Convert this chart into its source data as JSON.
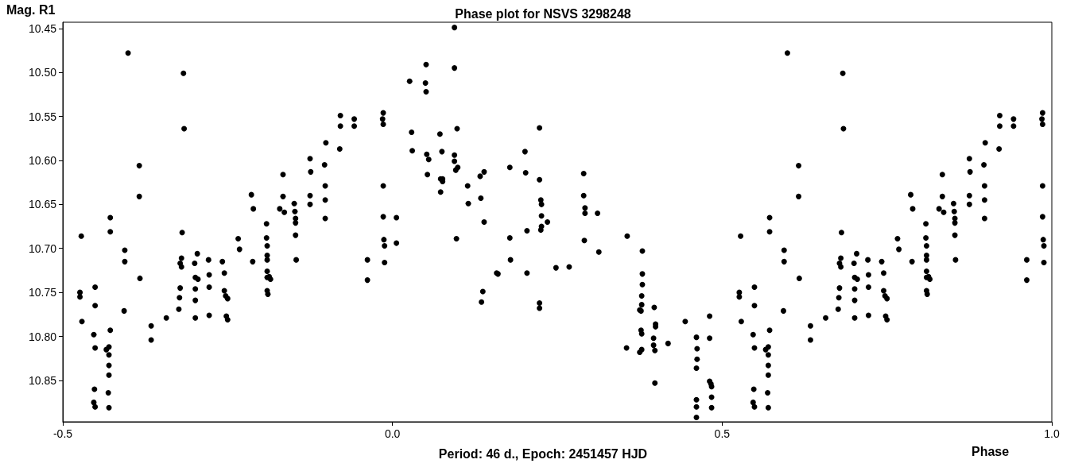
{
  "chart_data": {
    "type": "scatter",
    "title": "Phase plot for NSVS 3298248",
    "xlabel": "Phase",
    "ylabel": "Mag. R1",
    "annotations": [
      "Period: 46 d., Epoch: 2451457 HJD"
    ],
    "x": [
      -0.472,
      -0.474,
      -0.474,
      -0.471,
      -0.453,
      -0.451,
      -0.451,
      -0.451,
      -0.452,
      -0.451,
      -0.453,
      -0.434,
      -0.43,
      -0.43,
      -0.43,
      -0.43,
      -0.431,
      -0.43,
      -0.428,
      -0.428,
      -0.428,
      -0.406,
      -0.406,
      -0.407,
      -0.401,
      -0.384,
      -0.384,
      -0.383,
      -0.366,
      -0.366,
      -0.343,
      -0.324,
      -0.323,
      -0.322,
      -0.322,
      -0.32,
      -0.32,
      -0.319,
      -0.317,
      -0.316,
      -0.3,
      -0.299,
      -0.299,
      -0.299,
      -0.299,
      -0.296,
      -0.295,
      -0.279,
      -0.278,
      -0.278,
      -0.278,
      -0.258,
      -0.255,
      -0.255,
      -0.253,
      -0.25,
      -0.252,
      -0.25,
      -0.234,
      -0.232,
      -0.214,
      -0.211,
      -0.212,
      -0.191,
      -0.191,
      -0.19,
      -0.19,
      -0.19,
      -0.19,
      -0.19,
      -0.19,
      -0.189,
      -0.185,
      -0.187,
      -0.171,
      -0.166,
      -0.166,
      -0.164,
      -0.149,
      -0.148,
      -0.147,
      -0.147,
      -0.147,
      -0.146,
      -0.125,
      -0.124,
      -0.125,
      -0.125,
      -0.103,
      -0.102,
      -0.102,
      -0.102,
      -0.101,
      -0.08,
      -0.079,
      -0.079,
      -0.058,
      -0.058,
      -0.038,
      -0.038,
      -0.015,
      -0.014,
      -0.014,
      -0.014,
      -0.013,
      -0.012,
      -0.012,
      -0.014,
      0.006,
      0.006,
      0.026,
      0.029,
      0.03,
      0.05,
      0.051,
      0.051,
      0.052,
      0.053,
      0.055,
      0.072,
      0.073,
      0.073,
      0.075,
      0.076,
      0.076,
      0.094,
      0.094,
      0.094,
      0.094,
      0.096,
      0.097,
      0.098,
      0.099,
      0.114,
      0.115,
      0.133,
      0.134,
      0.135,
      0.137,
      0.139,
      0.139,
      0.158,
      0.16,
      0.178,
      0.178,
      0.179,
      0.201,
      0.202,
      0.204,
      0.204,
      0.223,
      0.223,
      0.225,
      0.226,
      0.226,
      0.226,
      0.225,
      0.223,
      0.223,
      0.235,
      0.248,
      0.268,
      0.29,
      0.29,
      0.292,
      0.292,
      0.291,
      0.311,
      0.313,
      0.356,
      0.355,
      0.375,
      0.378,
      0.378,
      0.377,
      0.377,
      0.378,
      0.378,
      0.379,
      0.379,
      0.379,
      0.375,
      0.396,
      0.396,
      0.398,
      0.398,
      0.399,
      0.397,
      0.399,
      0.418,
      0.444,
      0.461,
      0.462,
      0.462,
      0.461,
      0.461,
      0.461,
      0.461,
      0.481,
      0.481,
      0.481,
      0.483,
      0.484,
      0.484,
      0.484,
      0.528,
      0.526,
      0.526,
      0.529,
      0.547,
      0.549,
      0.549,
      0.549,
      0.548,
      0.549,
      0.547,
      0.566,
      0.57,
      0.57,
      0.57,
      0.57,
      0.569,
      0.57,
      0.572,
      0.572,
      0.572,
      0.594,
      0.594,
      0.593,
      0.599,
      0.616,
      0.616,
      0.617,
      0.634,
      0.634,
      0.657,
      0.676,
      0.677,
      0.678,
      0.678,
      0.68,
      0.68,
      0.681,
      0.683,
      0.684,
      0.7,
      0.701,
      0.701,
      0.701,
      0.701,
      0.704,
      0.705,
      0.721,
      0.722,
      0.722,
      0.722,
      0.742,
      0.745,
      0.745,
      0.747,
      0.75,
      0.748,
      0.75,
      0.766,
      0.768,
      0.786,
      0.789,
      0.788,
      0.809,
      0.809,
      0.81,
      0.81,
      0.81,
      0.81,
      0.81,
      0.81,
      0.811,
      0.815,
      0.813,
      0.829,
      0.834,
      0.834,
      0.836,
      0.851,
      0.852,
      0.853,
      0.853,
      0.853,
      0.854,
      0.875,
      0.876,
      0.875,
      0.875,
      0.897,
      0.898,
      0.898,
      0.898,
      0.899,
      0.92,
      0.921,
      0.921,
      0.942,
      0.942,
      0.962,
      0.962,
      0.985,
      0.986,
      0.986,
      0.986,
      0.987,
      0.988,
      0.988,
      0.986
    ],
    "values": [
      10.686,
      10.75,
      10.755,
      10.783,
      10.798,
      10.744,
      10.765,
      10.813,
      10.86,
      10.88,
      10.875,
      10.815,
      10.812,
      10.821,
      10.833,
      10.844,
      10.864,
      10.881,
      10.793,
      10.681,
      10.665,
      10.702,
      10.715,
      10.771,
      10.478,
      10.606,
      10.641,
      10.734,
      10.788,
      10.804,
      10.779,
      10.769,
      10.756,
      10.745,
      10.717,
      10.721,
      10.711,
      10.682,
      10.501,
      10.564,
      10.717,
      10.733,
      10.746,
      10.759,
      10.779,
      10.706,
      10.735,
      10.713,
      10.73,
      10.744,
      10.776,
      10.715,
      10.728,
      10.748,
      10.754,
      10.757,
      10.777,
      10.781,
      10.689,
      10.701,
      10.639,
      10.655,
      10.715,
      10.672,
      10.688,
      10.697,
      10.708,
      10.713,
      10.726,
      10.733,
      10.748,
      10.752,
      10.735,
      10.732,
      10.655,
      10.641,
      10.616,
      10.659,
      10.649,
      10.658,
      10.671,
      10.666,
      10.685,
      10.713,
      10.598,
      10.613,
      10.64,
      10.65,
      10.605,
      10.629,
      10.645,
      10.666,
      10.58,
      10.587,
      10.549,
      10.561,
      10.553,
      10.561,
      10.713,
      10.736,
      10.553,
      10.559,
      10.629,
      10.664,
      10.69,
      10.697,
      10.716,
      10.546,
      10.665,
      10.694,
      10.51,
      10.568,
      10.589,
      10.512,
      10.491,
      10.522,
      10.593,
      10.616,
      10.599,
      10.57,
      10.621,
      10.636,
      10.59,
      10.621,
      10.624,
      10.449,
      10.495,
      10.594,
      10.601,
      10.611,
      10.689,
      10.564,
      10.608,
      10.629,
      10.649,
      10.618,
      10.643,
      10.761,
      10.749,
      10.613,
      10.67,
      10.728,
      10.729,
      10.608,
      10.688,
      10.713,
      10.59,
      10.614,
      10.68,
      10.728,
      10.563,
      10.622,
      10.645,
      10.65,
      10.663,
      10.675,
      10.679,
      10.762,
      10.768,
      10.67,
      10.722,
      10.721,
      10.615,
      10.64,
      10.654,
      10.66,
      10.691,
      10.66,
      10.704,
      10.686,
      10.813,
      10.77,
      10.754,
      10.764,
      10.771,
      10.793,
      10.797,
      10.815,
      10.729,
      10.741,
      10.703,
      10.818,
      10.802,
      10.81,
      10.816,
      10.853,
      10.789,
      10.767,
      10.786,
      10.808,
      10.783,
      10.801,
      10.814,
      10.826,
      10.836,
      10.872,
      10.88,
      10.892,
      10.777,
      10.802,
      10.851,
      10.854,
      10.857,
      10.869,
      10.881,
      10.686,
      10.75,
      10.755,
      10.783,
      10.798,
      10.744,
      10.765,
      10.813,
      10.86,
      10.88,
      10.875,
      10.815,
      10.812,
      10.821,
      10.833,
      10.844,
      10.864,
      10.881,
      10.793,
      10.681,
      10.665,
      10.702,
      10.715,
      10.771,
      10.478,
      10.606,
      10.641,
      10.734,
      10.788,
      10.804,
      10.779,
      10.769,
      10.756,
      10.745,
      10.717,
      10.721,
      10.711,
      10.682,
      10.501,
      10.564,
      10.717,
      10.733,
      10.746,
      10.759,
      10.779,
      10.706,
      10.735,
      10.713,
      10.73,
      10.744,
      10.776,
      10.715,
      10.728,
      10.748,
      10.754,
      10.757,
      10.777,
      10.781,
      10.689,
      10.701,
      10.639,
      10.655,
      10.715,
      10.672,
      10.688,
      10.697,
      10.708,
      10.713,
      10.726,
      10.733,
      10.748,
      10.752,
      10.735,
      10.732,
      10.655,
      10.641,
      10.616,
      10.659,
      10.649,
      10.658,
      10.671,
      10.666,
      10.685,
      10.713,
      10.598,
      10.613,
      10.64,
      10.65,
      10.605,
      10.629,
      10.645,
      10.666,
      10.58,
      10.587,
      10.549,
      10.561,
      10.553,
      10.561,
      10.713,
      10.736,
      10.553,
      10.559,
      10.629,
      10.664,
      10.69,
      10.697,
      10.716,
      10.546
    ],
    "color": "#000000",
    "marker": "circle",
    "grid": false,
    "xlim": [
      -0.5,
      1.0
    ],
    "xticks": [
      -0.5,
      {
        "value": 0,
        "label": "0.0"
      },
      0.5,
      {
        "value": 1,
        "label": "1.0"
      }
    ],
    "ylim": [
      10.897,
      10.443
    ],
    "yticks": [
      10.45,
      {
        "value": 10.5,
        "label": "10.50"
      },
      10.55,
      {
        "value": 10.6,
        "label": "10.60"
      },
      10.65,
      {
        "value": 10.7,
        "label": "10.70"
      },
      10.75,
      {
        "value": 10.8,
        "label": "10.80"
      },
      10.85
    ]
  }
}
